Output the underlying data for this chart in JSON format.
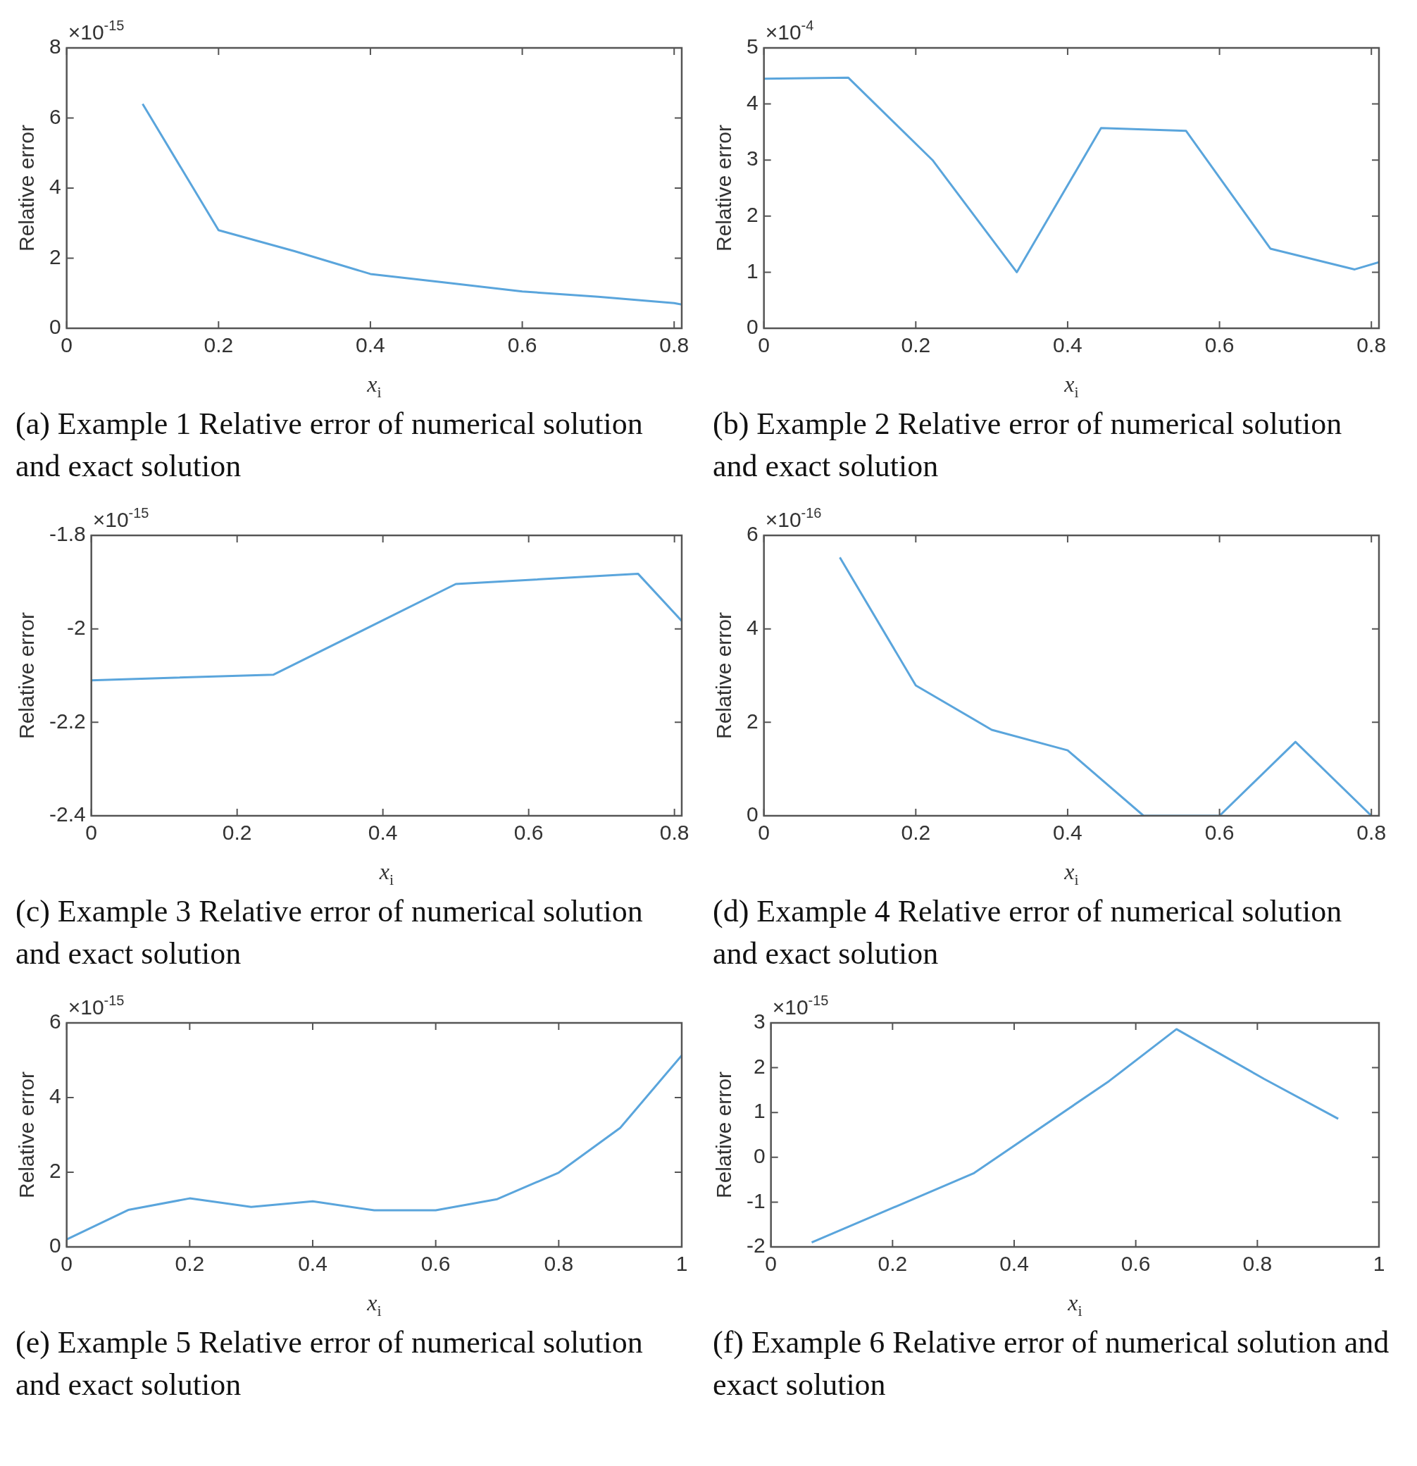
{
  "chart_data": [
    {
      "type": "line",
      "title": "(a) Example 1 Relative error of numerical solution and exact solution",
      "xlabel": "x$_{i}$",
      "ylabel": "Relative error",
      "annotations": [
        "×10$^{-15}$"
      ],
      "xlim": [
        0,
        0.81
      ],
      "xticks": [
        0,
        0.2,
        0.4,
        0.6,
        0.8
      ],
      "ylim": [
        0,
        8
      ],
      "yticks": [
        0,
        2,
        4,
        6,
        8
      ],
      "x": [
        0.1,
        0.2,
        0.3,
        0.4,
        0.5,
        0.6,
        0.7,
        0.8,
        0.81
      ],
      "series": [
        {
          "color": "#5aa5dc",
          "values": [
            6.4,
            2.8,
            2.2,
            1.55,
            1.3,
            1.05,
            0.9,
            0.72,
            0.68
          ]
        }
      ]
    },
    {
      "type": "line",
      "title": "(b) Example 2 Relative error of numerical solution and exact solution",
      "xlabel": "x$_{i}$",
      "ylabel": "Relative error",
      "annotations": [
        "×10$^{-4}$"
      ],
      "xlim": [
        0,
        0.81
      ],
      "xticks": [
        0,
        0.2,
        0.4,
        0.6,
        0.8
      ],
      "ylim": [
        0,
        5
      ],
      "yticks": [
        0,
        1,
        2,
        3,
        4,
        5
      ],
      "x": [
        0,
        0.111,
        0.222,
        0.333,
        0.444,
        0.556,
        0.667,
        0.778,
        0.81
      ],
      "series": [
        {
          "color": "#5aa5dc",
          "values": [
            4.45,
            4.47,
            3.0,
            1.0,
            3.57,
            3.52,
            1.42,
            1.05,
            1.18
          ]
        }
      ]
    },
    {
      "type": "line",
      "title": "(c) Example 3 Relative error of numerical solution and exact solution",
      "xlabel": "x$_{i}$",
      "ylabel": "Relative error",
      "annotations": [
        "×10$^{-15}$"
      ],
      "xlim": [
        0,
        0.81
      ],
      "xticks": [
        0,
        0.2,
        0.4,
        0.6,
        0.8
      ],
      "ylim": [
        -2.4,
        -1.8
      ],
      "yticks": [
        -2.4,
        -2.2,
        -2,
        -1.8
      ],
      "x": [
        0,
        0.25,
        0.5,
        0.75,
        0.81
      ],
      "series": [
        {
          "color": "#5aa5dc",
          "values": [
            -2.11,
            -2.098,
            -1.904,
            -1.882,
            -1.983
          ]
        }
      ]
    },
    {
      "type": "line",
      "title": "(d) Example 4 Relative error of numerical solution and exact solution",
      "xlabel": "x$_{i}$",
      "ylabel": "Relative error",
      "annotations": [
        "×10$^{-16}$"
      ],
      "xlim": [
        0,
        0.81
      ],
      "xticks": [
        0,
        0.2,
        0.4,
        0.6,
        0.8
      ],
      "ylim": [
        0,
        6
      ],
      "yticks": [
        0,
        2,
        4,
        6
      ],
      "x": [
        0.1,
        0.2,
        0.3,
        0.4,
        0.5,
        0.6,
        0.7,
        0.8
      ],
      "series": [
        {
          "color": "#5aa5dc",
          "values": [
            5.53,
            2.79,
            1.84,
            1.4,
            0,
            0,
            1.58,
            0
          ]
        }
      ]
    },
    {
      "type": "line",
      "title": "(e) Example 5 Relative error of numerical solution and exact solution",
      "xlabel": "x$_{i}$",
      "ylabel": "Relative error",
      "annotations": [
        "×10$^{-15}$"
      ],
      "xlim": [
        0,
        1
      ],
      "xticks": [
        0,
        0.2,
        0.4,
        0.6,
        0.8,
        1
      ],
      "ylim": [
        0,
        6
      ],
      "yticks": [
        0,
        2,
        4,
        6
      ],
      "x": [
        0,
        0.1,
        0.2,
        0.3,
        0.4,
        0.5,
        0.6,
        0.7,
        0.8,
        0.9,
        1
      ],
      "series": [
        {
          "color": "#5aa5dc",
          "values": [
            0.2,
            0.99,
            1.3,
            1.07,
            1.22,
            0.98,
            0.98,
            1.28,
            1.99,
            3.19,
            5.13
          ]
        }
      ]
    },
    {
      "type": "line",
      "title": "(f) Example 6 Relative error of numerical solution and exact solution",
      "xlabel": "x$_{i}$",
      "ylabel": "Relative error",
      "annotations": [
        "×10$^{-15}$"
      ],
      "xlim": [
        0,
        1
      ],
      "xticks": [
        0,
        0.2,
        0.4,
        0.6,
        0.8,
        1
      ],
      "ylim": [
        -2,
        3
      ],
      "yticks": [
        -2,
        -1,
        0,
        1,
        2,
        3
      ],
      "x": [
        0.067,
        0.333,
        0.556,
        0.667,
        0.811,
        0.933
      ],
      "series": [
        {
          "color": "#5aa5dc",
          "values": [
            -1.9,
            -0.36,
            1.7,
            2.86,
            1.75,
            0.86
          ]
        }
      ]
    }
  ]
}
